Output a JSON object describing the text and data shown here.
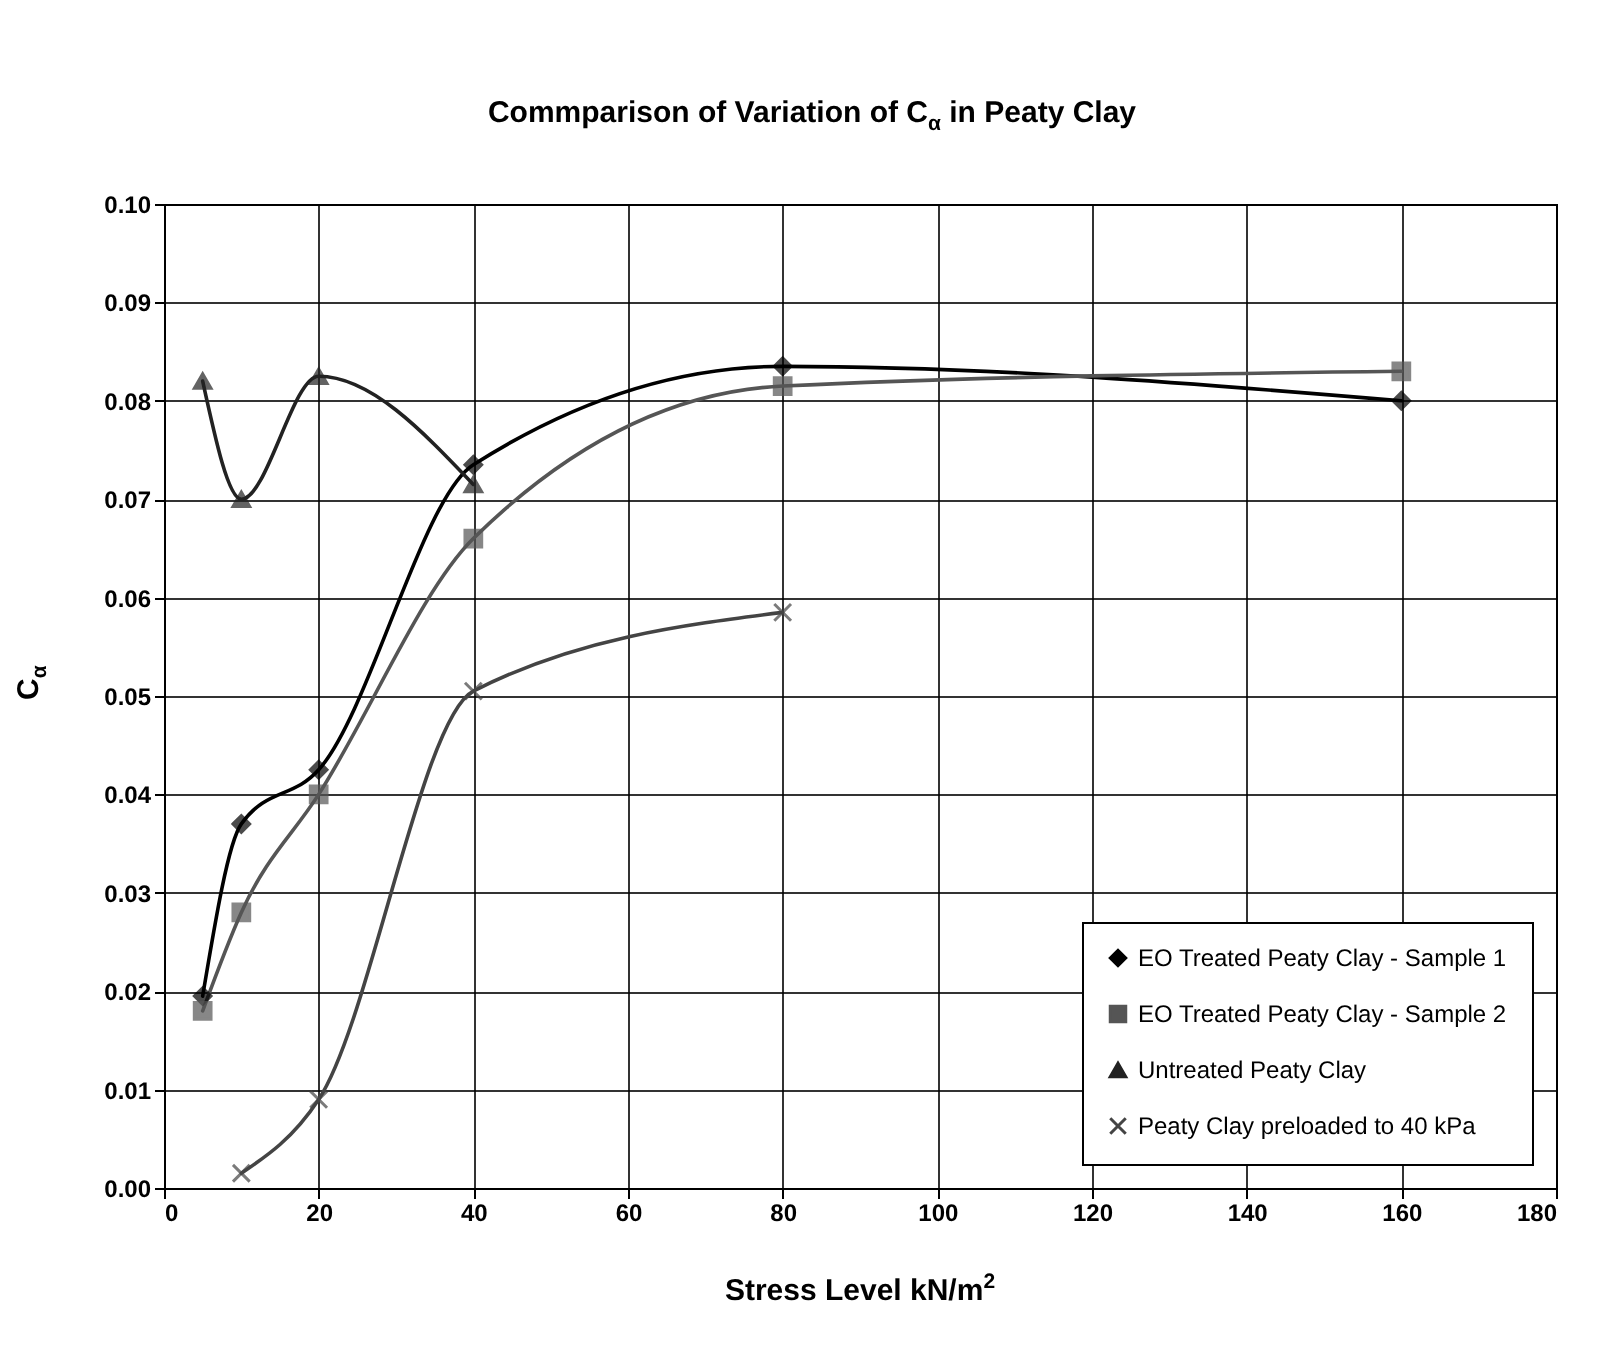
{
  "chart_data": {
    "type": "line",
    "title": "Commparison of Variation of C$_{α}$ in Peaty Clay",
    "xlabel": "Stress Level kN/m$^{2}$",
    "ylabel": "C$_{α}$",
    "xlim": [
      0,
      180
    ],
    "xticks": [
      0,
      20,
      40,
      60,
      80,
      100,
      120,
      140,
      160,
      180
    ],
    "ylim": [
      0,
      0.1
    ],
    "yticks": [
      {
        "value": 0,
        "label": "0.00"
      },
      {
        "value": 0.01,
        "label": "0.01"
      },
      {
        "value": 0.02,
        "label": "0.02"
      },
      {
        "value": 0.03,
        "label": "0.03"
      },
      {
        "value": 0.04,
        "label": "0.04"
      },
      {
        "value": 0.05,
        "label": "0.05"
      },
      {
        "value": 0.06,
        "label": "0.06"
      },
      {
        "value": 0.07,
        "label": "0.07"
      },
      {
        "value": 0.08,
        "label": "0.08"
      },
      {
        "value": 0.09,
        "label": "0.09"
      },
      {
        "value": 0.1,
        "label": "0.10"
      }
    ],
    "grid": true,
    "legend": "bottom right",
    "series": [
      {
        "name": "EO Treated Peaty Clay - Sample 1",
        "color": "#000000",
        "marker": "diamond",
        "x": [
          5,
          10,
          20,
          40,
          80,
          160
        ],
        "values": [
          0.0195,
          0.037,
          0.0425,
          0.0735,
          0.0835,
          0.08
        ]
      },
      {
        "name": "EO Treated Peaty Clay - Sample 2",
        "color": "#555555",
        "marker": "square",
        "x": [
          5,
          10,
          20,
          40,
          80,
          160
        ],
        "values": [
          0.018,
          0.028,
          0.04,
          0.066,
          0.0815,
          0.083
        ]
      },
      {
        "name": "Untreated Peaty Clay",
        "color": "#222222",
        "marker": "triangle",
        "x": [
          5,
          10,
          20,
          40
        ],
        "values": [
          0.082,
          0.07,
          0.0825,
          0.0715
        ]
      },
      {
        "name": "Peaty Clay preloaded to 40 kPa",
        "color": "#444444",
        "marker": "cross",
        "x": [
          10,
          20,
          40,
          80
        ],
        "values": [
          0.0015,
          0.009,
          0.0505,
          0.0585
        ]
      }
    ]
  }
}
